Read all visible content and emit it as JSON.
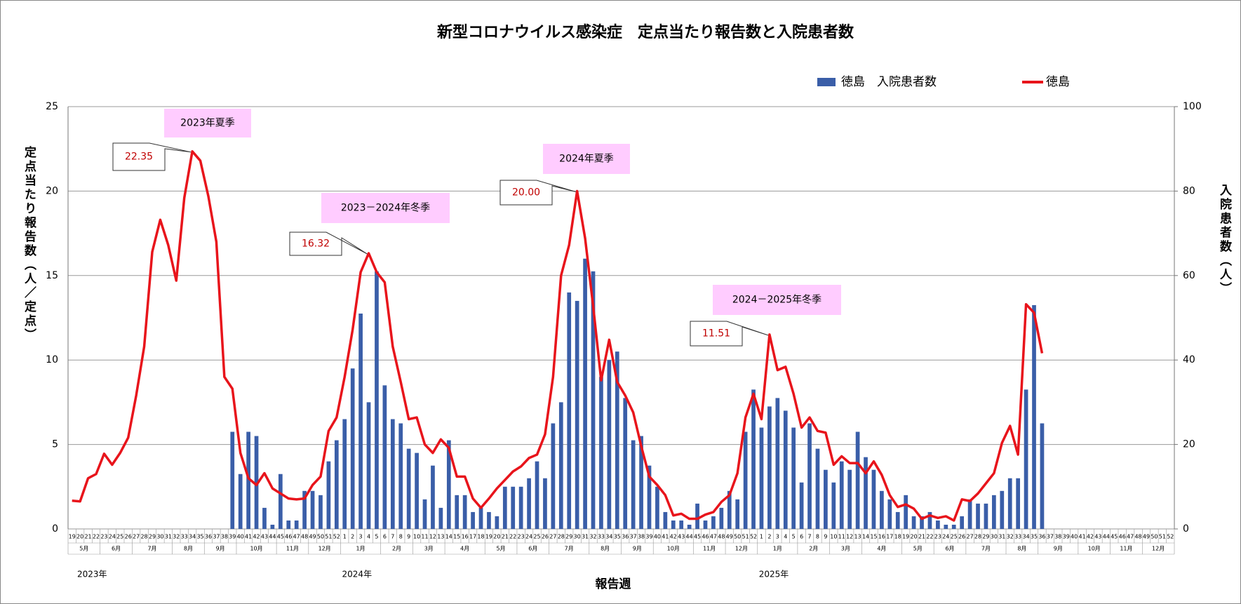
{
  "chart_data": {
    "type": "combo",
    "title": "新型コロナウイルス感染症　定点当たり報告数と入院患者数",
    "y_label": "定点当たり報告数（人／定点）",
    "y2_label": "入院患者数（人）",
    "x_label": "報告週",
    "legend": "top-right",
    "grid": true,
    "ylim": [
      0,
      25
    ],
    "yticks": [
      0,
      5,
      10,
      15,
      20,
      25
    ],
    "y2lim": [
      0,
      100
    ],
    "y2ticks": [
      0,
      20,
      40,
      60,
      80,
      100
    ],
    "categories": [
      "19",
      "20",
      "21",
      "22",
      "23",
      "24",
      "25",
      "26",
      "27",
      "28",
      "29",
      "30",
      "31",
      "32",
      "33",
      "34",
      "35",
      "36",
      "37",
      "38",
      "39",
      "40",
      "41",
      "42",
      "43",
      "44",
      "45",
      "46",
      "47",
      "48",
      "49",
      "50",
      "51",
      "52",
      "1",
      "2",
      "3",
      "4",
      "5",
      "6",
      "7",
      "8",
      "9",
      "10",
      "11",
      "12",
      "13",
      "14",
      "15",
      "16",
      "17",
      "18",
      "19",
      "20",
      "21",
      "22",
      "23",
      "24",
      "25",
      "26",
      "27",
      "28",
      "29",
      "30",
      "31",
      "32",
      "33",
      "34",
      "35",
      "36",
      "37",
      "38",
      "39",
      "40",
      "41",
      "42",
      "43",
      "44",
      "45",
      "46",
      "47",
      "48",
      "49",
      "50",
      "51",
      "52",
      "1",
      "2",
      "3",
      "4",
      "5",
      "6",
      "7",
      "8",
      "9",
      "10",
      "11",
      "12",
      "13",
      "14",
      "15",
      "16",
      "17",
      "18",
      "19",
      "20",
      "21",
      "22",
      "23",
      "24",
      "25",
      "26",
      "27",
      "28",
      "29",
      "30",
      "31",
      "32",
      "33",
      "34",
      "35",
      "36",
      "37",
      "38",
      "39",
      "40",
      "41",
      "42",
      "43",
      "44",
      "45",
      "46",
      "47",
      "48",
      "49",
      "50",
      "51",
      "52"
    ],
    "months": [
      {
        "label": "5月",
        "weeks": 4
      },
      {
        "label": "6月",
        "weeks": 4
      },
      {
        "label": "7月",
        "weeks": 5
      },
      {
        "label": "8月",
        "weeks": 4
      },
      {
        "label": "9月",
        "weeks": 4
      },
      {
        "label": "10月",
        "weeks": 5
      },
      {
        "label": "11月",
        "weeks": 4
      },
      {
        "label": "12月",
        "weeks": 4
      },
      {
        "label": "1月",
        "weeks": 5
      },
      {
        "label": "2月",
        "weeks": 4
      },
      {
        "label": "3月",
        "weeks": 4
      },
      {
        "label": "4月",
        "weeks": 5
      },
      {
        "label": "5月",
        "weeks": 4
      },
      {
        "label": "6月",
        "weeks": 4
      },
      {
        "label": "7月",
        "weeks": 5
      },
      {
        "label": "8月",
        "weeks": 4
      },
      {
        "label": "9月",
        "weeks": 4
      },
      {
        "label": "10月",
        "weeks": 5
      },
      {
        "label": "11月",
        "weeks": 4
      },
      {
        "label": "12月",
        "weeks": 4
      },
      {
        "label": "1月",
        "weeks": 5
      },
      {
        "label": "2月",
        "weeks": 4
      },
      {
        "label": "3月",
        "weeks": 4
      },
      {
        "label": "4月",
        "weeks": 5
      },
      {
        "label": "5月",
        "weeks": 4
      },
      {
        "label": "6月",
        "weeks": 4
      },
      {
        "label": "7月",
        "weeks": 5
      },
      {
        "label": "8月",
        "weeks": 4
      },
      {
        "label": "9月",
        "weeks": 5
      },
      {
        "label": "10月",
        "weeks": 4
      },
      {
        "label": "11月",
        "weeks": 4
      },
      {
        "label": "12月",
        "weeks": 4
      }
    ],
    "years": [
      {
        "label": "2023年",
        "weeks": 34
      },
      {
        "label": "2024年",
        "weeks": 52
      },
      {
        "label": "2025年",
        "weeks": 52
      }
    ],
    "annotations": [
      "2023年夏季",
      "2023－2024年冬季",
      "2024年夏季",
      "2024－2025年冬季"
    ],
    "series": [
      {
        "name": "徳島　入院患者数",
        "type": "bar",
        "axis": "y2",
        "color": "#3a5ea8",
        "values": [
          null,
          null,
          null,
          null,
          null,
          null,
          null,
          null,
          null,
          null,
          null,
          null,
          null,
          null,
          null,
          null,
          null,
          null,
          null,
          null,
          23,
          13,
          23,
          22,
          5,
          1,
          13,
          2,
          2,
          9,
          9,
          8,
          16,
          21,
          26,
          38,
          51,
          30,
          61,
          34,
          26,
          25,
          19,
          18,
          7,
          15,
          5,
          21,
          8,
          8,
          4,
          5,
          4,
          3,
          10,
          10,
          10,
          12,
          16,
          12,
          25,
          30,
          56,
          54,
          64,
          61,
          36,
          40,
          42,
          31,
          21,
          22,
          15,
          10,
          4,
          2,
          2,
          1,
          6,
          2,
          3,
          5,
          9,
          7,
          23,
          33,
          24,
          29,
          31,
          28,
          24,
          11,
          25,
          19,
          14,
          11,
          16,
          14,
          23,
          17,
          14,
          9,
          7,
          4,
          8,
          3,
          3,
          4,
          2,
          1,
          1,
          3,
          7,
          6,
          6,
          8,
          9,
          12,
          12,
          33,
          53,
          25,
          null,
          null,
          null,
          null,
          null,
          null,
          null,
          null,
          null,
          null,
          null,
          null,
          null,
          null,
          null,
          null
        ]
      },
      {
        "name": "徳島",
        "type": "line",
        "color": "#e8141b",
        "values": [
          1.67,
          1.63,
          3.0,
          3.25,
          4.45,
          3.8,
          4.5,
          5.4,
          7.9,
          10.8,
          16.4,
          18.3,
          16.8,
          14.7,
          19.6,
          22.35,
          21.8,
          19.7,
          17.0,
          9.0,
          8.3,
          4.5,
          3.0,
          2.6,
          3.3,
          2.4,
          2.1,
          1.8,
          1.75,
          1.8,
          2.6,
          3.1,
          5.8,
          6.6,
          9.0,
          11.8,
          15.2,
          16.32,
          15.2,
          14.6,
          10.8,
          8.7,
          6.5,
          6.6,
          5.0,
          4.5,
          5.3,
          4.8,
          3.1,
          3.1,
          1.8,
          1.25,
          1.8,
          2.4,
          2.9,
          3.4,
          3.7,
          4.2,
          4.4,
          5.6,
          9.0,
          15.0,
          16.8,
          20.0,
          17.2,
          13.2,
          8.8,
          11.2,
          8.7,
          7.9,
          6.9,
          4.9,
          3.1,
          2.6,
          2.0,
          0.8,
          0.9,
          0.6,
          0.6,
          0.85,
          1.0,
          1.6,
          2.0,
          3.3,
          6.6,
          8.0,
          6.5,
          11.51,
          9.4,
          9.6,
          8.0,
          6.0,
          6.6,
          5.8,
          5.7,
          3.8,
          4.3,
          3.9,
          3.9,
          3.3,
          4.0,
          3.2,
          2.0,
          1.3,
          1.45,
          1.2,
          0.6,
          0.8,
          0.65,
          0.75,
          0.5,
          1.75,
          1.65,
          2.1,
          2.7,
          3.3,
          5.1,
          6.1,
          4.4,
          13.3,
          12.8,
          10.4,
          null,
          null,
          null,
          null,
          null,
          null,
          null,
          null,
          null,
          null,
          null,
          null,
          null,
          null,
          null,
          null
        ],
        "value_labels": [
          null,
          null,
          null,
          null,
          null,
          null,
          null,
          null,
          null,
          null,
          null,
          null,
          null,
          null,
          null,
          "22.35",
          null,
          null,
          null,
          null,
          null,
          null,
          null,
          null,
          null,
          null,
          null,
          null,
          null,
          null,
          null,
          null,
          null,
          null,
          null,
          null,
          null,
          "16.32",
          null,
          null,
          null,
          null,
          null,
          null,
          null,
          null,
          null,
          null,
          null,
          null,
          null,
          null,
          null,
          null,
          null,
          null,
          null,
          null,
          null,
          null,
          null,
          null,
          null,
          "20.00",
          null,
          null,
          null,
          null,
          null,
          null,
          null,
          null,
          null,
          null,
          null,
          null,
          null,
          null,
          null,
          null,
          null,
          null,
          null,
          null,
          null,
          null,
          null,
          "11.51",
          null,
          null,
          null,
          null,
          null,
          null,
          null,
          null,
          null,
          null,
          null,
          null,
          null,
          null,
          null,
          null,
          null,
          null,
          null,
          null,
          null,
          null,
          null,
          null,
          null,
          null,
          null,
          null,
          null,
          null,
          null,
          null,
          null,
          null,
          null,
          null,
          null,
          null,
          null,
          null,
          null,
          null,
          null,
          null,
          null,
          null,
          null,
          null,
          null,
          null
        ]
      }
    ]
  }
}
